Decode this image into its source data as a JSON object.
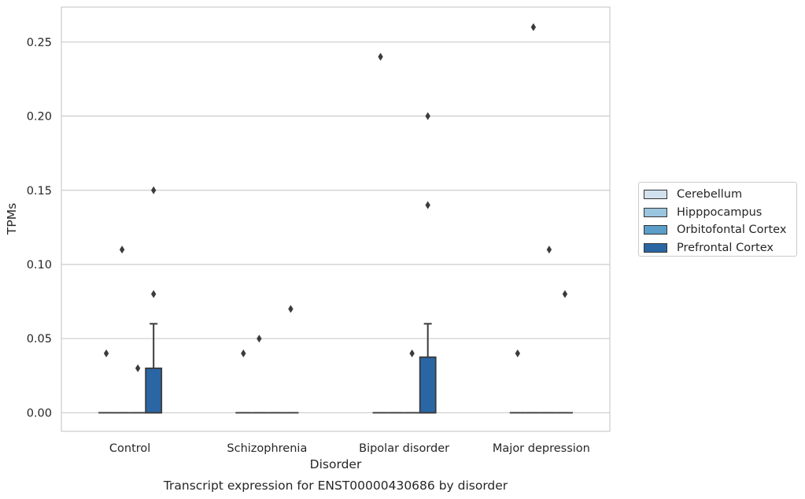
{
  "chart_data": {
    "type": "box",
    "title": "Transcript expression for ENST00000430686 by disorder",
    "xlabel": "Disorder",
    "ylabel": "TPMs",
    "ylim": [
      -0.0125,
      0.2735
    ],
    "yticks": [
      "0.00",
      "0.05",
      "0.10",
      "0.15",
      "0.20",
      "0.25"
    ],
    "grid": true,
    "legend_placement": "right",
    "categories": [
      "Control",
      "Schizophrenia",
      "Bipolar disorder",
      "Major depression"
    ],
    "series": [
      {
        "name": "Cerebellum",
        "color": "#d3e1ef",
        "boxes": [
          {
            "q1": 0,
            "median": 0,
            "q3": 0,
            "whislo": 0,
            "whishi": 0,
            "fliers": [
              0.04
            ]
          },
          {
            "q1": 0,
            "median": 0,
            "q3": 0,
            "whislo": 0,
            "whishi": 0,
            "fliers": [
              0.04
            ]
          },
          {
            "q1": 0,
            "median": 0,
            "q3": 0,
            "whislo": 0,
            "whishi": 0,
            "fliers": [
              0.24
            ]
          },
          {
            "q1": 0,
            "median": 0,
            "q3": 0,
            "whislo": 0,
            "whishi": 0,
            "fliers": [
              0.04
            ]
          }
        ]
      },
      {
        "name": "Hipppocampus",
        "color": "#9ac5df",
        "boxes": [
          {
            "q1": 0,
            "median": 0,
            "q3": 0,
            "whislo": 0,
            "whishi": 0,
            "fliers": [
              0.11
            ]
          },
          {
            "q1": 0,
            "median": 0,
            "q3": 0,
            "whislo": 0,
            "whishi": 0,
            "fliers": [
              0.05
            ]
          },
          {
            "q1": 0,
            "median": 0,
            "q3": 0,
            "whislo": 0,
            "whishi": 0,
            "fliers": []
          },
          {
            "q1": 0,
            "median": 0,
            "q3": 0,
            "whislo": 0,
            "whishi": 0,
            "fliers": [
              0.26
            ]
          }
        ]
      },
      {
        "name": "Orbitofontal Cortex",
        "color": "#5a9ec9",
        "boxes": [
          {
            "q1": 0,
            "median": 0,
            "q3": 0,
            "whislo": 0,
            "whishi": 0,
            "fliers": [
              0.03
            ]
          },
          {
            "q1": 0,
            "median": 0,
            "q3": 0,
            "whislo": 0,
            "whishi": 0,
            "fliers": []
          },
          {
            "q1": 0,
            "median": 0,
            "q3": 0,
            "whislo": 0,
            "whishi": 0,
            "fliers": [
              0.04
            ]
          },
          {
            "q1": 0,
            "median": 0,
            "q3": 0,
            "whislo": 0,
            "whishi": 0,
            "fliers": [
              0.11
            ]
          }
        ]
      },
      {
        "name": "Prefrontal Cortex",
        "color": "#2a66a4",
        "boxes": [
          {
            "q1": 0,
            "median": 0,
            "q3": 0.03,
            "whislo": 0,
            "whishi": 0.06,
            "fliers": [
              0.08,
              0.15
            ]
          },
          {
            "q1": 0,
            "median": 0,
            "q3": 0,
            "whislo": 0,
            "whishi": 0,
            "fliers": [
              0.07
            ]
          },
          {
            "q1": 0,
            "median": 0,
            "q3": 0.0375,
            "whislo": 0,
            "whishi": 0.06,
            "fliers": [
              0.14,
              0.2
            ]
          },
          {
            "q1": 0,
            "median": 0,
            "q3": 0,
            "whislo": 0,
            "whishi": 0,
            "fliers": [
              0.08
            ]
          }
        ]
      }
    ]
  }
}
